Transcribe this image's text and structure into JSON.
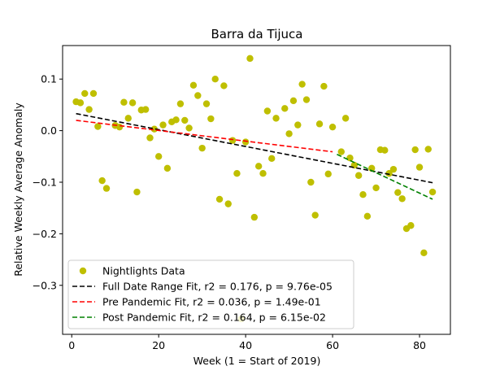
{
  "chart_data": {
    "type": "scatter",
    "title": "Barra da Tijuca",
    "xlabel": "Week (1 = Start of 2019)",
    "ylabel": "Relative Weekly Average Anomaly",
    "xlim": [
      -2.1,
      87.1
    ],
    "ylim": [
      -0.395,
      0.165
    ],
    "xticks": [
      0,
      20,
      40,
      60,
      80
    ],
    "xtick_labels": [
      "0",
      "20",
      "40",
      "60",
      "80"
    ],
    "yticks": [
      0.1,
      0.0,
      -0.1,
      -0.2,
      -0.3
    ],
    "ytick_labels": [
      "0.1",
      "0.0",
      "−0.1",
      "−0.2",
      "−0.3"
    ],
    "colors": {
      "points": "#bfbf00",
      "full_fit": "#000000",
      "pre_fit": "#ff0000",
      "post_fit": "#008000"
    },
    "legend": {
      "placement": "lower-left",
      "entries": [
        {
          "label": "Nightlights Data",
          "style": "marker"
        },
        {
          "label": "Full Date Range Fit, r2 = 0.176, p = 9.76e-05",
          "style": "dash-black"
        },
        {
          "label": "Pre Pandemic Fit, r2 = 0.036, p = 1.49e-01",
          "style": "dash-red"
        },
        {
          "label": "Post Pandemic Fit, r2 = 0.164, p = 6.15e-02",
          "style": "dash-green"
        }
      ]
    },
    "fits": [
      {
        "name": "Full Date Range Fit",
        "x": [
          1,
          83
        ],
        "y": [
          0.033,
          -0.101
        ]
      },
      {
        "name": "Pre Pandemic Fit",
        "x": [
          1,
          60
        ],
        "y": [
          0.02,
          -0.041
        ]
      },
      {
        "name": "Post Pandemic Fit",
        "x": [
          61,
          83
        ],
        "y": [
          -0.046,
          -0.133
        ]
      }
    ],
    "series": [
      {
        "name": "Nightlights Data",
        "x": [
          1,
          2,
          3,
          4,
          5,
          6,
          7,
          8,
          10,
          11,
          12,
          13,
          14,
          15,
          16,
          17,
          18,
          19,
          20,
          21,
          22,
          23,
          24,
          25,
          26,
          27,
          28,
          29,
          30,
          31,
          32,
          33,
          34,
          35,
          36,
          37,
          38,
          39,
          40,
          41,
          42,
          43,
          44,
          45,
          46,
          47,
          49,
          50,
          51,
          52,
          53,
          54,
          55,
          56,
          57,
          58,
          59,
          60,
          62,
          63,
          64,
          65,
          66,
          67,
          68,
          69,
          70,
          71,
          72,
          73,
          74,
          75,
          76,
          77,
          78,
          79,
          80,
          81,
          82,
          83
        ],
        "y": [
          0.056,
          0.054,
          0.072,
          0.041,
          0.072,
          0.008,
          -0.097,
          -0.112,
          0.01,
          0.007,
          0.055,
          0.024,
          0.054,
          -0.119,
          0.04,
          0.041,
          -0.014,
          0.003,
          -0.05,
          0.011,
          -0.073,
          0.017,
          0.021,
          0.052,
          0.02,
          0.005,
          0.088,
          0.068,
          -0.034,
          0.052,
          0.023,
          0.1,
          -0.133,
          0.087,
          -0.142,
          -0.019,
          -0.083,
          -0.365,
          -0.022,
          0.14,
          -0.168,
          -0.069,
          -0.083,
          0.038,
          -0.054,
          0.024,
          0.043,
          -0.006,
          0.058,
          0.011,
          0.09,
          0.06,
          -0.1,
          -0.164,
          0.013,
          0.086,
          -0.084,
          0.007,
          -0.041,
          0.024,
          -0.053,
          -0.067,
          -0.087,
          -0.124,
          -0.166,
          -0.073,
          -0.111,
          -0.037,
          -0.038,
          -0.083,
          -0.075,
          -0.12,
          -0.132,
          -0.19,
          -0.184,
          -0.037,
          -0.071,
          -0.237,
          -0.036,
          -0.119
        ]
      }
    ]
  }
}
